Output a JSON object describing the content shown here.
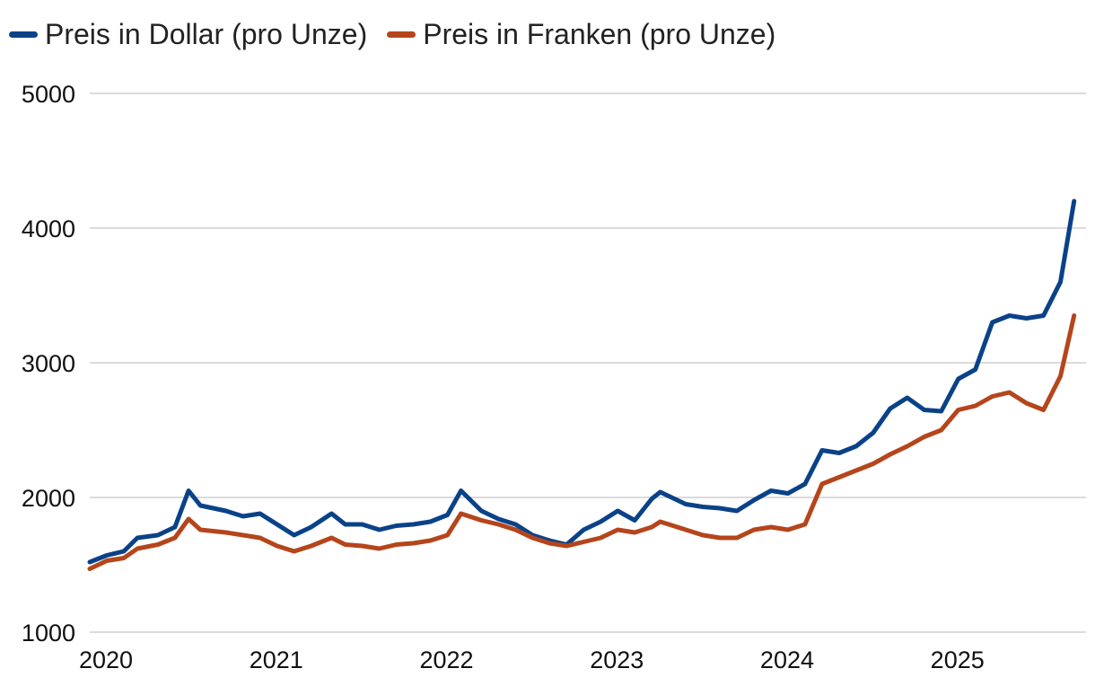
{
  "colors": {
    "dollar": "#0a4288",
    "franken": "#b5451b",
    "grid": "#cfcfcf"
  },
  "chart_data": {
    "type": "line",
    "title": "",
    "xlabel": "",
    "ylabel": "",
    "ylim": [
      1000,
      5000
    ],
    "xlim": [
      2020.0,
      2025.85
    ],
    "yticks": [
      "1000",
      "2000",
      "3000",
      "4000",
      "5000"
    ],
    "xticks": [
      "2020",
      "2021",
      "2022",
      "2023",
      "2024",
      "2025"
    ],
    "grid": true,
    "legend": "top-left",
    "series": [
      {
        "name": "Preis in Dollar (pro Unze)",
        "color": "#0a4288",
        "x": [
          2020.0,
          2020.1,
          2020.2,
          2020.28,
          2020.4,
          2020.5,
          2020.58,
          2020.65,
          2020.8,
          2020.9,
          2021.0,
          2021.1,
          2021.2,
          2021.3,
          2021.42,
          2021.5,
          2021.6,
          2021.7,
          2021.8,
          2021.9,
          2022.0,
          2022.1,
          2022.18,
          2022.3,
          2022.4,
          2022.5,
          2022.6,
          2022.7,
          2022.8,
          2022.9,
          2023.0,
          2023.1,
          2023.2,
          2023.3,
          2023.35,
          2023.5,
          2023.6,
          2023.7,
          2023.8,
          2023.9,
          2024.0,
          2024.1,
          2024.2,
          2024.3,
          2024.4,
          2024.5,
          2024.6,
          2024.7,
          2024.8,
          2024.9,
          2025.0,
          2025.1,
          2025.2,
          2025.3,
          2025.4,
          2025.5,
          2025.6,
          2025.7,
          2025.78
        ],
        "y": [
          1520,
          1570,
          1600,
          1700,
          1720,
          1780,
          2050,
          1940,
          1900,
          1860,
          1880,
          1800,
          1720,
          1780,
          1880,
          1800,
          1800,
          1760,
          1790,
          1800,
          1820,
          1870,
          2050,
          1900,
          1840,
          1800,
          1720,
          1680,
          1650,
          1760,
          1820,
          1900,
          1830,
          1990,
          2040,
          1950,
          1930,
          1920,
          1900,
          1980,
          2050,
          2030,
          2100,
          2350,
          2330,
          2380,
          2480,
          2660,
          2740,
          2650,
          2640,
          2880,
          2950,
          3300,
          3350,
          3330,
          3350,
          3600,
          4200
        ]
      },
      {
        "name": "Preis in Franken (pro Unze)",
        "color": "#b5451b",
        "x": [
          2020.0,
          2020.1,
          2020.2,
          2020.28,
          2020.4,
          2020.5,
          2020.58,
          2020.65,
          2020.8,
          2020.9,
          2021.0,
          2021.1,
          2021.2,
          2021.3,
          2021.42,
          2021.5,
          2021.6,
          2021.7,
          2021.8,
          2021.9,
          2022.0,
          2022.1,
          2022.18,
          2022.3,
          2022.4,
          2022.5,
          2022.6,
          2022.7,
          2022.8,
          2022.9,
          2023.0,
          2023.1,
          2023.2,
          2023.3,
          2023.35,
          2023.5,
          2023.6,
          2023.7,
          2023.8,
          2023.9,
          2024.0,
          2024.1,
          2024.2,
          2024.3,
          2024.4,
          2024.5,
          2024.6,
          2024.7,
          2024.8,
          2024.9,
          2025.0,
          2025.1,
          2025.2,
          2025.3,
          2025.4,
          2025.5,
          2025.6,
          2025.7,
          2025.78
        ],
        "y": [
          1470,
          1530,
          1550,
          1620,
          1650,
          1700,
          1840,
          1760,
          1740,
          1720,
          1700,
          1640,
          1600,
          1640,
          1700,
          1650,
          1640,
          1620,
          1650,
          1660,
          1680,
          1720,
          1880,
          1830,
          1800,
          1760,
          1700,
          1660,
          1640,
          1670,
          1700,
          1760,
          1740,
          1780,
          1820,
          1760,
          1720,
          1700,
          1700,
          1760,
          1780,
          1760,
          1800,
          2100,
          2150,
          2200,
          2250,
          2320,
          2380,
          2450,
          2500,
          2650,
          2680,
          2750,
          2780,
          2700,
          2650,
          2900,
          3350
        ]
      }
    ]
  }
}
